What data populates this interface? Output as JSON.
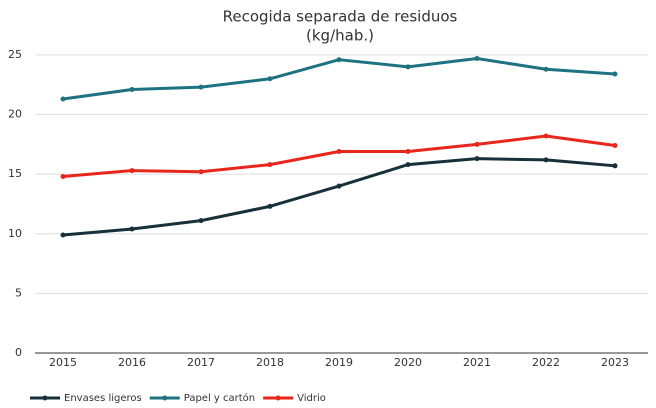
{
  "chart_data": {
    "type": "line",
    "title": "Recogida separada de residuos",
    "subtitle": "(kg/hab.)",
    "categories": [
      "2015",
      "2016",
      "2017",
      "2018",
      "2019",
      "2020",
      "2021",
      "2022",
      "2023"
    ],
    "series": [
      {
        "name": "Envases ligeros",
        "color": "#17303a",
        "values": [
          9.9,
          10.4,
          11.1,
          12.3,
          14.0,
          15.8,
          16.3,
          16.2,
          15.7
        ]
      },
      {
        "name": "Papel y cartón",
        "color": "#1e7282",
        "values": [
          21.3,
          22.1,
          22.3,
          23.0,
          24.6,
          24.0,
          24.7,
          23.8,
          23.4
        ]
      },
      {
        "name": "Vidrio",
        "color": "#e8261c",
        "values": [
          14.8,
          15.3,
          15.2,
          15.8,
          16.9,
          16.9,
          17.5,
          18.2,
          17.4
        ]
      }
    ],
    "ylim": [
      0,
      26
    ],
    "yticks": [
      0,
      5,
      10,
      15,
      20,
      25
    ],
    "grid": true,
    "legend": "bottom-left"
  }
}
